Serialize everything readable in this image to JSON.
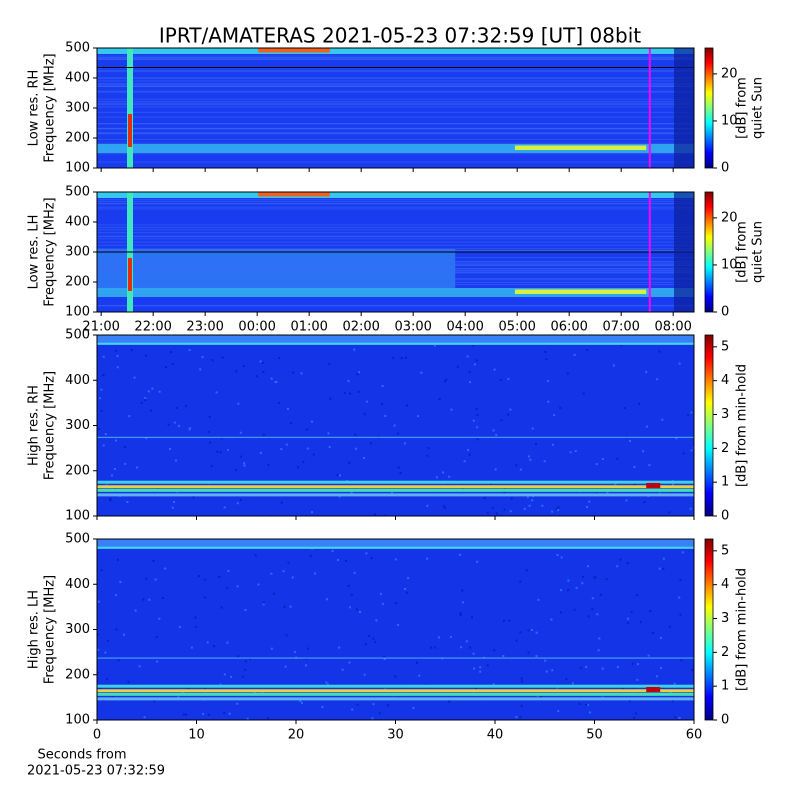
{
  "chart_data": [
    {
      "type": "heatmap",
      "title": "IPRT/AMATERAS 2021-05-23 07:32:59 [UT]   08bit",
      "ylabel": [
        "Low res. RH",
        "Frequency [MHz]"
      ],
      "ylim": [
        100,
        500
      ],
      "yticks": [
        100,
        200,
        300,
        400,
        500
      ],
      "xlim": [
        20.92,
        32.4
      ],
      "xticks": [
        {
          "value": 21,
          "label": "21:00"
        },
        {
          "value": 22,
          "label": "22:00"
        },
        {
          "value": 23,
          "label": "23:00"
        },
        {
          "value": 24,
          "label": "00:00"
        },
        {
          "value": 25,
          "label": "01:00"
        },
        {
          "value": 26,
          "label": "02:00"
        },
        {
          "value": 27,
          "label": "03:00"
        },
        {
          "value": 28,
          "label": "04:00"
        },
        {
          "value": 29,
          "label": "05:00"
        },
        {
          "value": 30,
          "label": "06:00"
        },
        {
          "value": 31,
          "label": "07:00"
        },
        {
          "value": 32,
          "label": "08:00"
        }
      ],
      "show_xtick_labels": false,
      "marker": {
        "value": 31.55,
        "color": "#ff00ff"
      },
      "colormap": "jet",
      "colorbar_label": [
        "[dB] from",
        "quiet Sun"
      ],
      "clim": [
        0,
        25.5
      ],
      "cticks": [
        0,
        10,
        20
      ]
    },
    {
      "type": "heatmap",
      "ylabel": [
        "Low res. LH",
        "Frequency [MHz]"
      ],
      "ylim": [
        100,
        500
      ],
      "yticks": [
        100,
        200,
        300,
        400,
        500
      ],
      "xlim": [
        20.92,
        32.4
      ],
      "xticks": [
        {
          "value": 21,
          "label": "21:00"
        },
        {
          "value": 22,
          "label": "22:00"
        },
        {
          "value": 23,
          "label": "23:00"
        },
        {
          "value": 24,
          "label": "00:00"
        },
        {
          "value": 25,
          "label": "01:00"
        },
        {
          "value": 26,
          "label": "02:00"
        },
        {
          "value": 27,
          "label": "03:00"
        },
        {
          "value": 28,
          "label": "04:00"
        },
        {
          "value": 29,
          "label": "05:00"
        },
        {
          "value": 30,
          "label": "06:00"
        },
        {
          "value": 31,
          "label": "07:00"
        },
        {
          "value": 32,
          "label": "08:00"
        }
      ],
      "show_xtick_labels": true,
      "marker": {
        "value": 31.55,
        "color": "#ff00ff"
      },
      "colormap": "jet",
      "colorbar_label": [
        "[dB] from",
        "quiet Sun"
      ],
      "clim": [
        0,
        25.5
      ],
      "cticks": [
        0,
        10,
        20
      ]
    },
    {
      "type": "heatmap",
      "ylabel": [
        "High res. RH",
        "Frequency [MHz]"
      ],
      "ylim": [
        100,
        500
      ],
      "yticks": [
        100,
        200,
        300,
        400,
        500
      ],
      "xlim": [
        0,
        60
      ],
      "xticks": [
        0,
        10,
        20,
        30,
        40,
        50,
        60
      ],
      "show_xtick_labels": false,
      "colormap": "jet",
      "colorbar_label": [
        "[dB] from min-hold"
      ],
      "clim": [
        0,
        5.35
      ],
      "cticks": [
        0,
        1,
        2,
        3,
        4,
        5
      ]
    },
    {
      "type": "heatmap",
      "ylabel": [
        "High res. LH",
        "Frequency [MHz]"
      ],
      "ylim": [
        100,
        500
      ],
      "yticks": [
        100,
        200,
        300,
        400,
        500
      ],
      "xlim": [
        0,
        60
      ],
      "xticks": [
        0,
        10,
        20,
        30,
        40,
        50,
        60
      ],
      "show_xtick_labels": true,
      "xlabel": [
        "Seconds from",
        "2021-05-23 07:32:59"
      ],
      "colormap": "jet",
      "colorbar_label": [
        "[dB] from min-hold"
      ],
      "clim": [
        0,
        5.35
      ],
      "cticks": [
        0,
        1,
        2,
        3,
        4,
        5
      ]
    }
  ]
}
